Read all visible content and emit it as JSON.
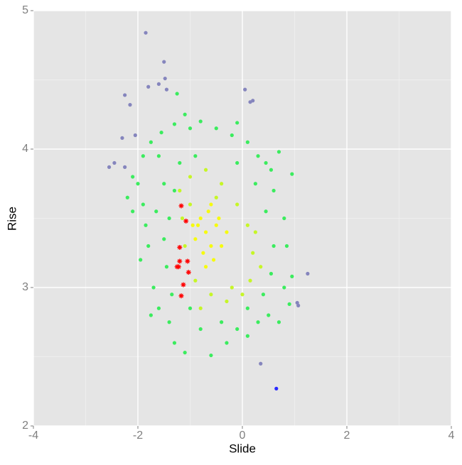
{
  "chart_data": {
    "type": "scatter",
    "x_label": "Slide",
    "y_label": "Rise",
    "xlim": [
      -4,
      4
    ],
    "ylim": [
      2,
      5
    ],
    "xticks": [
      -4,
      -2,
      0,
      2,
      4
    ],
    "yticks": [
      2,
      3,
      4,
      5
    ],
    "grid": true,
    "series": [
      {
        "color": "#8585bd",
        "marker": "dot",
        "x": [
          -1.85,
          -1.5,
          -1.48,
          -1.6,
          -1.8,
          -1.45,
          -2.25,
          -2.15,
          0.05,
          0.15,
          0.2,
          -2.3,
          -2.05,
          -2.55,
          -2.45,
          -2.25,
          1.25,
          1.05,
          1.07,
          0.35
        ],
        "values": [
          4.84,
          4.63,
          4.51,
          4.47,
          4.45,
          4.43,
          4.39,
          4.32,
          4.43,
          4.34,
          4.35,
          4.08,
          4.1,
          3.87,
          3.9,
          3.87,
          3.1,
          2.89,
          2.87,
          2.45
        ]
      },
      {
        "color": "#2a2aff",
        "marker": "dot",
        "x": [
          0.65
        ],
        "values": [
          2.27
        ]
      },
      {
        "color": "#3bec5e",
        "marker": "dot",
        "x": [
          -2.0,
          -1.9,
          -1.85,
          -1.8,
          -1.95,
          -1.7,
          -1.6,
          -1.75,
          -1.4,
          -1.3,
          -1.1,
          -0.6,
          -0.3,
          -0.1,
          0.1,
          0.3,
          0.5,
          0.7,
          0.9,
          0.8,
          0.95,
          0.85,
          0.8,
          0.6,
          0.55,
          0.7,
          0.45,
          0.3,
          0.1,
          -0.2,
          -0.5,
          -0.8,
          -1.1,
          -1.3,
          -1.55,
          -1.75,
          -1.9,
          -2.1,
          -2.2,
          -2.1,
          -1.6,
          -1.5,
          -1.65,
          -1.5,
          -1.45,
          -1.35,
          -1.0,
          -0.8,
          -0.4,
          0.1,
          0.4,
          0.55,
          0.6,
          0.45,
          0.25,
          -0.1,
          -0.9,
          -1.2,
          -1.3,
          -1.4,
          -1.25,
          -0.1,
          -1.0,
          0.95
        ],
        "values": [
          3.75,
          3.6,
          3.45,
          3.3,
          3.2,
          3.0,
          2.85,
          2.8,
          2.75,
          2.6,
          2.53,
          2.51,
          2.6,
          2.7,
          2.65,
          2.75,
          2.8,
          2.75,
          2.88,
          3.0,
          3.08,
          3.3,
          3.5,
          3.7,
          3.85,
          3.98,
          3.9,
          3.95,
          4.05,
          4.1,
          4.15,
          4.2,
          4.25,
          4.18,
          4.12,
          4.05,
          3.95,
          3.8,
          3.65,
          3.55,
          3.95,
          3.75,
          3.55,
          3.35,
          3.15,
          2.95,
          2.85,
          2.7,
          2.75,
          2.85,
          2.95,
          3.1,
          3.3,
          3.55,
          3.75,
          3.9,
          3.95,
          3.9,
          3.7,
          3.5,
          4.4,
          4.19,
          4.15,
          3.82
        ]
      },
      {
        "color": "#c6f627",
        "marker": "dot",
        "x": [
          -1.2,
          -1.0,
          -0.7,
          -0.4,
          -0.1,
          0.1,
          0.2,
          0.15,
          0.0,
          -0.3,
          -0.6,
          -0.9,
          -1.1,
          -1.15,
          -0.5,
          -0.2,
          0.25,
          -1.0,
          -0.8,
          0.35
        ],
        "values": [
          3.7,
          3.8,
          3.85,
          3.75,
          3.6,
          3.45,
          3.25,
          3.05,
          2.95,
          2.9,
          2.95,
          3.05,
          3.3,
          3.5,
          3.65,
          3.0,
          3.4,
          3.6,
          2.85,
          3.15
        ]
      },
      {
        "color": "#f6fb0f",
        "marker": "dot",
        "x": [
          -0.8,
          -0.7,
          -0.6,
          -0.75,
          -0.5,
          -0.9,
          -0.65,
          -0.4,
          -0.55,
          -0.85,
          -0.6,
          -0.3,
          -0.7,
          -0.95,
          -0.45
        ],
        "values": [
          3.5,
          3.4,
          3.3,
          3.25,
          3.45,
          3.35,
          3.55,
          3.3,
          3.2,
          3.45,
          3.6,
          3.4,
          3.15,
          3.45,
          3.5
        ]
      },
      {
        "color": "#ff0000",
        "marker": "star",
        "x": [
          -1.17,
          -1.08,
          -1.2,
          -1.2,
          -1.05,
          -1.25,
          -1.22,
          -1.03,
          -1.13,
          -1.17
        ],
        "values": [
          3.59,
          3.48,
          3.29,
          3.19,
          3.19,
          3.15,
          3.15,
          3.11,
          3.02,
          2.94
        ]
      }
    ]
  }
}
